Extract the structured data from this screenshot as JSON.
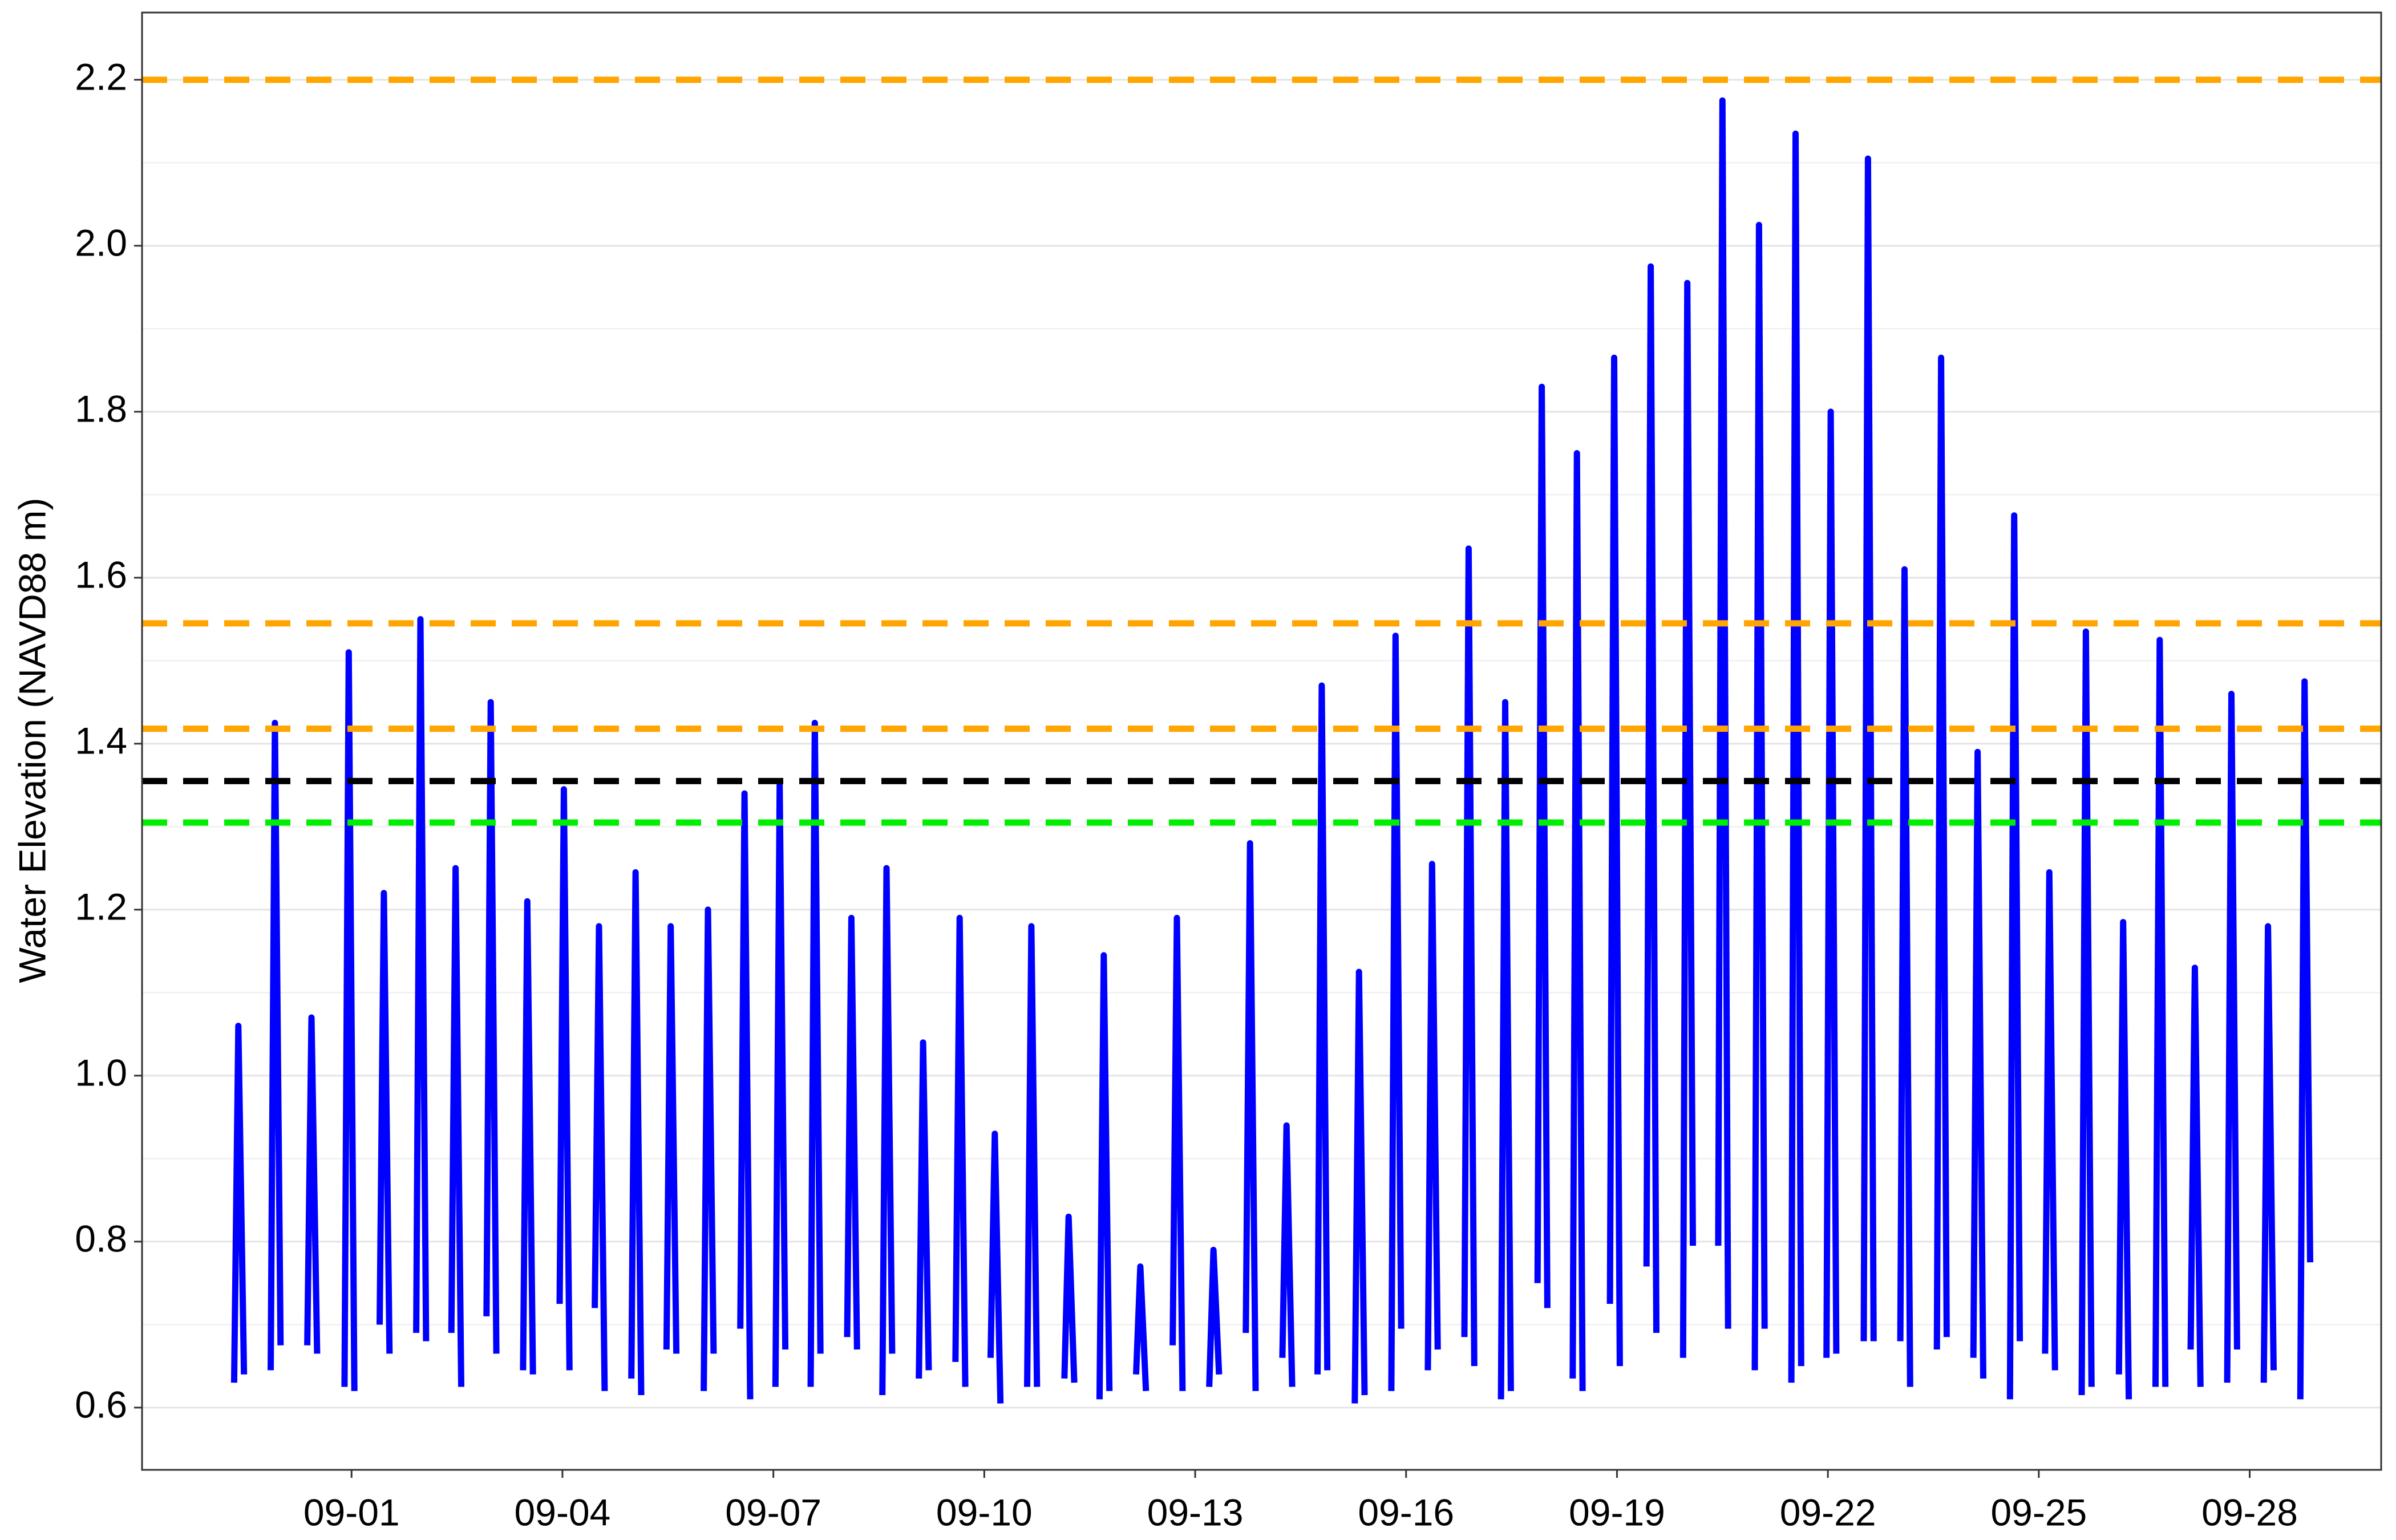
{
  "chart_data": {
    "type": "line",
    "y_label": "Water Elevation (NAVD88 m)",
    "xlim": [
      -2.98,
      28.87
    ],
    "ylim": [
      0.525,
      2.281
    ],
    "xticks": [
      {
        "value": 0,
        "label": "09-01"
      },
      {
        "value": 3,
        "label": "09-04"
      },
      {
        "value": 6,
        "label": "09-07"
      },
      {
        "value": 9,
        "label": "09-10"
      },
      {
        "value": 12,
        "label": "09-13"
      },
      {
        "value": 15,
        "label": "09-16"
      },
      {
        "value": 18,
        "label": "09-19"
      },
      {
        "value": 21,
        "label": "09-22"
      },
      {
        "value": 24,
        "label": "09-25"
      },
      {
        "value": 27,
        "label": "09-28"
      }
    ],
    "yticks": [
      0.6,
      0.8,
      {
        "value": 1,
        "label": "1.0"
      },
      1.2,
      1.4,
      1.6,
      1.8,
      {
        "value": 2,
        "label": "2.0"
      },
      2.2
    ],
    "minor_yticks": [
      0.7,
      0.9,
      1.1,
      1.3,
      1.5,
      1.7,
      1.9,
      2.1
    ],
    "grid": true,
    "hlines": [
      {
        "value": 2.2,
        "color": "#ffa500"
      },
      {
        "value": 1.545,
        "color": "#ffa500"
      },
      {
        "value": 1.418,
        "color": "#ffa500"
      },
      {
        "value": 1.355,
        "color": "#000000"
      },
      {
        "value": 1.305,
        "color": "#00ee00"
      }
    ],
    "x": [
      -1.67,
      -1.61,
      -1.53,
      null,
      -1.15,
      -1.09,
      -1.01,
      null,
      -0.63,
      -0.57,
      -0.49,
      null,
      -0.1,
      -0.04,
      0.04,
      null,
      0.4,
      0.46,
      0.54,
      null,
      0.92,
      0.98,
      1.06,
      null,
      1.42,
      1.48,
      1.56,
      null,
      1.92,
      1.98,
      2.06,
      null,
      2.44,
      2.5,
      2.58,
      null,
      2.96,
      3.02,
      3.1,
      null,
      3.46,
      3.52,
      3.6,
      null,
      3.98,
      4.04,
      4.12,
      null,
      4.48,
      4.54,
      4.62,
      null,
      5.01,
      5.07,
      5.15,
      null,
      5.53,
      5.59,
      5.67,
      null,
      6.03,
      6.09,
      6.17,
      null,
      6.53,
      6.59,
      6.67,
      null,
      7.05,
      7.11,
      7.19,
      null,
      7.55,
      7.61,
      7.69,
      null,
      8.07,
      8.13,
      8.21,
      null,
      8.59,
      8.65,
      8.73,
      null,
      9.09,
      9.15,
      9.23,
      null,
      9.61,
      9.67,
      9.75,
      null,
      10.14,
      10.2,
      10.28,
      null,
      10.64,
      10.7,
      10.78,
      null,
      11.16,
      11.22,
      11.3,
      null,
      11.68,
      11.74,
      11.82,
      null,
      12.2,
      12.26,
      12.34,
      null,
      12.72,
      12.78,
      12.86,
      null,
      13.24,
      13.3,
      13.38,
      null,
      13.74,
      13.8,
      13.88,
      null,
      14.27,
      14.33,
      14.41,
      null,
      14.79,
      14.85,
      14.93,
      null,
      15.31,
      15.37,
      15.45,
      null,
      15.83,
      15.89,
      15.97,
      null,
      16.35,
      16.41,
      16.49,
      null,
      16.87,
      16.93,
      17.01,
      null,
      17.37,
      17.43,
      17.51,
      null,
      17.9,
      17.96,
      18.04,
      null,
      18.42,
      18.48,
      18.56,
      null,
      18.94,
      19.0,
      19.08,
      null,
      19.44,
      19.5,
      19.58,
      null,
      19.96,
      20.02,
      20.1,
      null,
      20.48,
      20.54,
      20.62,
      null,
      20.98,
      21.04,
      21.12,
      null,
      21.51,
      21.57,
      21.65,
      null,
      22.03,
      22.09,
      22.17,
      null,
      22.55,
      22.61,
      22.69,
      null,
      23.07,
      23.13,
      23.21,
      null,
      23.59,
      23.65,
      23.73,
      null,
      24.09,
      24.15,
      24.23,
      null,
      24.61,
      24.67,
      24.75,
      null,
      25.14,
      25.2,
      25.28,
      null,
      25.66,
      25.72,
      25.8,
      null,
      26.16,
      26.22,
      26.3,
      null,
      26.68,
      26.74,
      26.82,
      null,
      27.2,
      27.26,
      27.34,
      null,
      27.72,
      27.78,
      27.86
    ],
    "series": [
      {
        "color": "#0000ff",
        "values": [
          0.63,
          1.06,
          0.64,
          null,
          0.645,
          1.425,
          0.675,
          null,
          0.675,
          1.07,
          0.665,
          null,
          0.625,
          1.51,
          0.62,
          null,
          0.7,
          1.22,
          0.665,
          null,
          0.69,
          1.55,
          0.68,
          null,
          0.69,
          1.25,
          0.625,
          null,
          0.71,
          1.45,
          0.665,
          null,
          0.645,
          1.21,
          0.64,
          null,
          0.725,
          1.345,
          0.645,
          null,
          0.72,
          1.18,
          0.62,
          null,
          0.635,
          1.245,
          0.615,
          null,
          0.67,
          1.18,
          0.665,
          null,
          0.62,
          1.2,
          0.665,
          null,
          0.695,
          1.34,
          0.61,
          null,
          0.625,
          1.35,
          0.67,
          null,
          0.625,
          1.425,
          0.665,
          null,
          0.685,
          1.19,
          0.67,
          null,
          0.615,
          1.25,
          0.665,
          null,
          0.635,
          1.04,
          0.645,
          null,
          0.655,
          1.19,
          0.625,
          null,
          0.66,
          0.93,
          0.605,
          null,
          0.625,
          1.18,
          0.625,
          null,
          0.635,
          0.83,
          0.63,
          null,
          0.61,
          1.145,
          0.62,
          null,
          0.64,
          0.77,
          0.62,
          null,
          0.675,
          1.19,
          0.62,
          null,
          0.625,
          0.79,
          0.64,
          null,
          0.69,
          1.28,
          0.62,
          null,
          0.66,
          0.94,
          0.625,
          null,
          0.64,
          1.47,
          0.645,
          null,
          0.605,
          1.125,
          0.615,
          null,
          0.62,
          1.53,
          0.695,
          null,
          0.645,
          1.255,
          0.67,
          null,
          0.685,
          1.635,
          0.65,
          null,
          0.61,
          1.45,
          0.62,
          null,
          0.75,
          1.83,
          0.72,
          null,
          0.635,
          1.75,
          0.62,
          null,
          0.725,
          1.865,
          0.65,
          null,
          0.77,
          1.975,
          0.69,
          null,
          0.66,
          1.955,
          0.795,
          null,
          0.795,
          2.175,
          0.695,
          null,
          0.645,
          2.025,
          0.695,
          null,
          0.63,
          2.135,
          0.65,
          null,
          0.66,
          1.8,
          0.665,
          null,
          0.68,
          2.105,
          0.68,
          null,
          0.68,
          1.61,
          0.625,
          null,
          0.67,
          1.865,
          0.685,
          null,
          0.66,
          1.39,
          0.635,
          null,
          0.61,
          1.675,
          0.68,
          null,
          0.665,
          1.245,
          0.645,
          null,
          0.615,
          1.535,
          0.625,
          null,
          0.64,
          1.185,
          0.61,
          null,
          0.625,
          1.525,
          0.625,
          null,
          0.67,
          1.13,
          0.625,
          null,
          0.63,
          1.46,
          0.67,
          null,
          0.63,
          1.18,
          0.645,
          null,
          0.61,
          1.475,
          0.775
        ]
      }
    ]
  }
}
